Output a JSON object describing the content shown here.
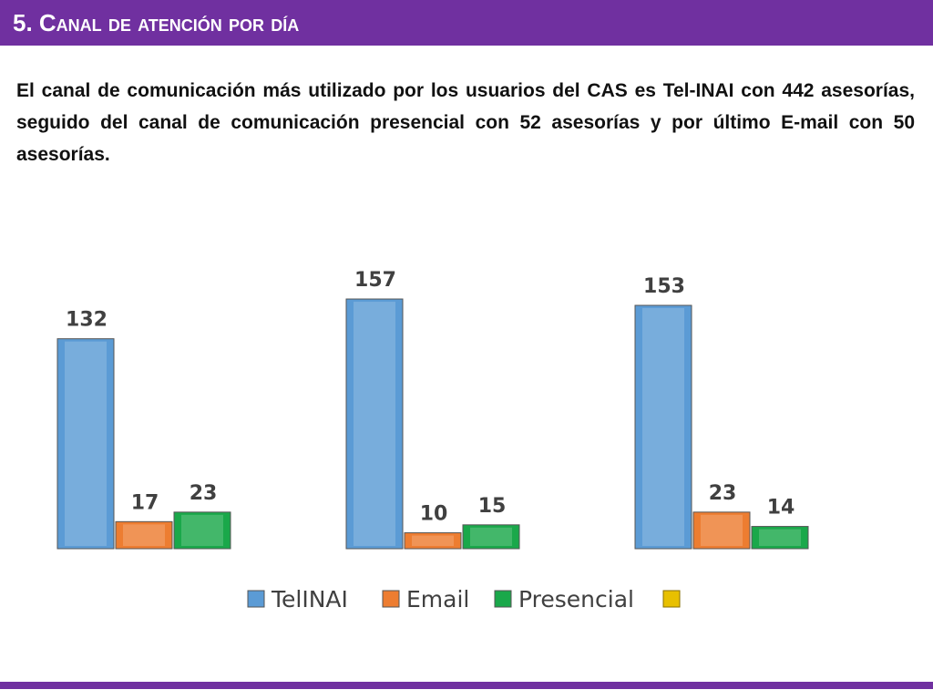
{
  "header": {
    "title": "5. Canal de atención por día"
  },
  "body": {
    "text": "El canal de comunicación más utilizado por los usuarios del CAS es Tel-INAI con 442  asesorías, seguido del canal de comunicación presencial  con 52 asesorías y por último E-mail con 50 asesorías."
  },
  "chart_data": {
    "type": "bar",
    "categories": [
      null,
      null,
      null
    ],
    "series": [
      {
        "name": "TelINAI",
        "color": "#5b9bd5",
        "values": [
          132,
          157,
          153
        ]
      },
      {
        "name": "Email",
        "color": "#ed7d31",
        "values": [
          17,
          10,
          23
        ]
      },
      {
        "name": "Presencial",
        "color": "#1aa84a",
        "values": [
          23,
          15,
          14
        ]
      }
    ]
  }
}
